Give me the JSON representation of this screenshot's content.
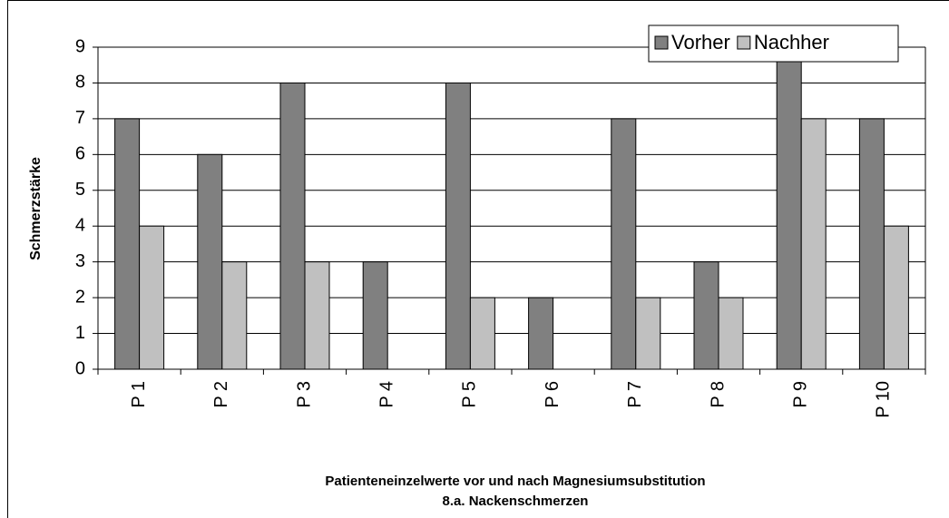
{
  "chart_data": {
    "type": "bar",
    "categories": [
      "P 1",
      "P 2",
      "P 3",
      "P 4",
      "P 5",
      "P 6",
      "P 7",
      "P 8",
      "P 9",
      "P 10"
    ],
    "series": [
      {
        "name": "Vorher",
        "color": "#808080",
        "values": [
          7,
          6,
          8,
          3,
          8,
          2,
          7,
          3,
          9,
          7
        ]
      },
      {
        "name": "Nachher",
        "color": "#c0c0c0",
        "values": [
          4,
          3,
          3,
          0,
          2,
          0,
          2,
          2,
          7,
          4
        ]
      }
    ],
    "ylabel": "Schmerzstärke",
    "xlabel": [
      "Patienteneinzelwerte vor und nach Magnesiumsubstitution",
      "8.a. Nackenschmerzen"
    ],
    "ylim": [
      0,
      9
    ],
    "yticks": [
      0,
      1,
      2,
      3,
      4,
      5,
      6,
      7,
      8,
      9
    ],
    "grid": true,
    "legend": "top-right"
  }
}
